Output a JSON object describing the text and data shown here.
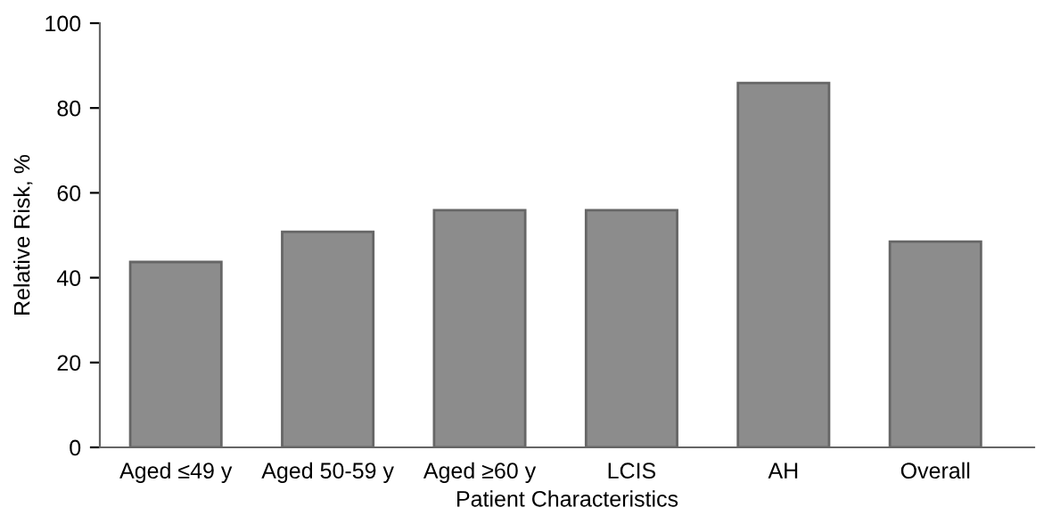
{
  "chart_data": {
    "type": "bar",
    "xlabel": "Patient Characteristics",
    "ylabel": "Relative Risk, %",
    "categories": [
      "Aged ≤49 y",
      "Aged 50-59 y",
      "Aged ≥60 y",
      "LCIS",
      "AH",
      "Overall"
    ],
    "values": [
      43.7,
      50.8,
      55.9,
      55.9,
      85.9,
      48.5
    ],
    "color": "#8c8c8c",
    "ylim": [
      0,
      100
    ],
    "yticks": [
      0,
      20,
      40,
      60,
      80,
      100
    ],
    "grid": false
  }
}
